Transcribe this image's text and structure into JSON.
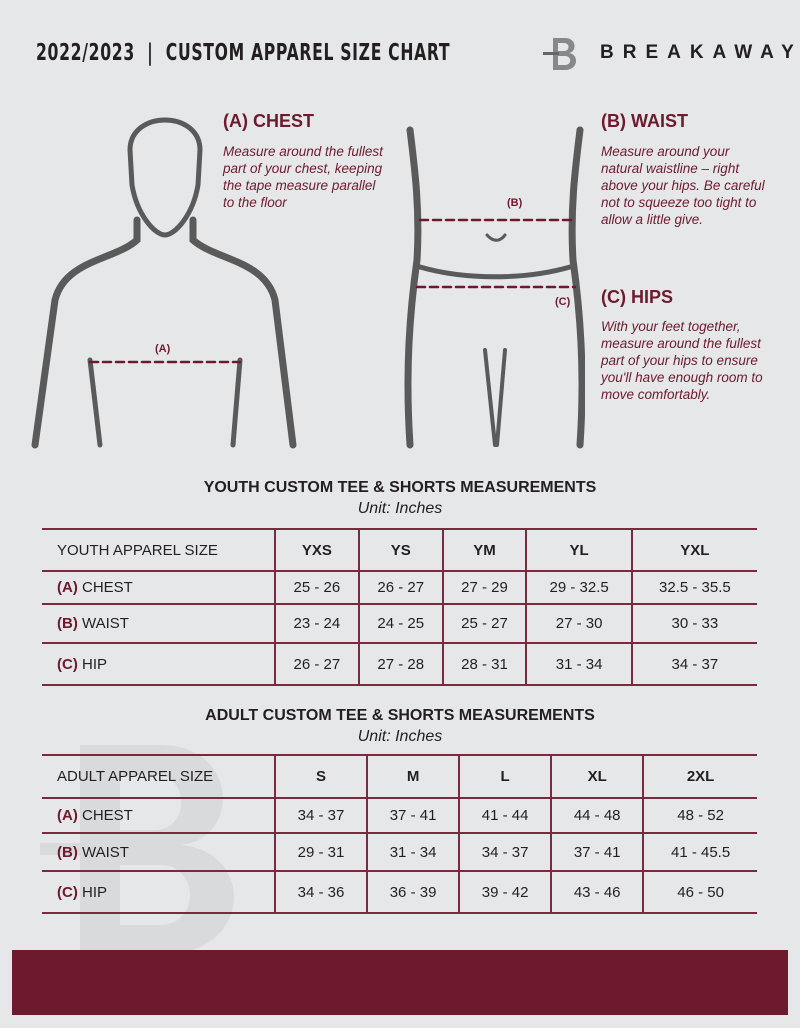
{
  "header": {
    "title": "2022/2023  |  CUSTOM APPAREL SIZE CHART",
    "brand": "BREAKAWAY",
    "logo_letter": "B"
  },
  "guide": {
    "chest": {
      "title": "(A) CHEST",
      "desc": "Measure around the fullest part of your chest, keeping the tape measure parallel to the floor",
      "marker": "(A)"
    },
    "waist": {
      "title": "(B) WAIST",
      "desc": "Measure around your natural waistline – right above your hips. Be careful not to squeeze too tight to allow a little give.",
      "marker": "(B)"
    },
    "hips": {
      "title": "(C) HIPS",
      "desc": "With your feet together, measure around the fullest part of your hips to ensure you'll have enough room to move comfortably.",
      "marker": "(C)"
    }
  },
  "youth": {
    "title": "YOUTH CUSTOM TEE & SHORTS MEASUREMENTS",
    "unit": "Unit: Inches",
    "header": "YOUTH APPAREL SIZE",
    "sizes": [
      "YXS",
      "YS",
      "YM",
      "YL",
      "YXL"
    ],
    "rows": [
      {
        "tag": "(A)",
        "label": "CHEST",
        "values": [
          "25 - 26",
          "26 - 27",
          "27 - 29",
          "29 - 32.5",
          "32.5 - 35.5"
        ]
      },
      {
        "tag": "(B)",
        "label": "WAIST",
        "values": [
          "23 - 24",
          "24 - 25",
          "25 - 27",
          "27 - 30",
          "30 - 33"
        ]
      },
      {
        "tag": "(C)",
        "label": "HIP",
        "values": [
          "26 - 27",
          "27 - 28",
          "28 - 31",
          "31 - 34",
          "34 - 37"
        ]
      }
    ]
  },
  "adult": {
    "title": "ADULT CUSTOM TEE & SHORTS MEASUREMENTS",
    "unit": "Unit: Inches",
    "header": "ADULT APPAREL SIZE",
    "sizes": [
      "S",
      "M",
      "L",
      "XL",
      "2XL"
    ],
    "rows": [
      {
        "tag": "(A)",
        "label": "CHEST",
        "values": [
          "34 - 37",
          "37 - 41",
          "41 - 44",
          "44 - 48",
          "48 - 52"
        ]
      },
      {
        "tag": "(B)",
        "label": "WAIST",
        "values": [
          "29 - 31",
          "31 - 34",
          "34 - 37",
          "37 - 41",
          "41 - 45.5"
        ]
      },
      {
        "tag": "(C)",
        "label": "HIP",
        "values": [
          "34 - 36",
          "36 - 39",
          "39 - 42",
          "43 - 46",
          "46 - 50"
        ]
      }
    ]
  },
  "colors": {
    "accent": "#6e1a2e",
    "background": "#e6e7e9"
  }
}
